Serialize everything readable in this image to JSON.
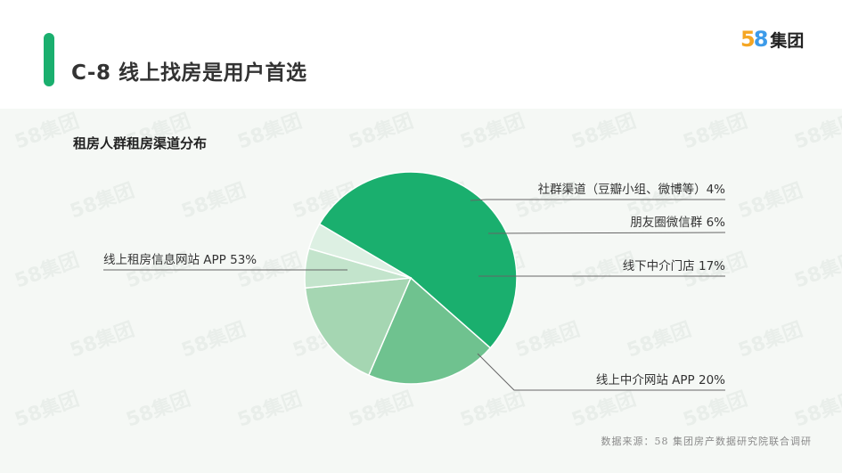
{
  "header": {
    "title": "C-8 线上找房是用户首选"
  },
  "logo": {
    "digit_a": "5",
    "digit_b": "8",
    "text": "集团",
    "watermark": "58集团"
  },
  "colors": {
    "accent": "#1aaf6e",
    "slices": [
      "#1aaf6e",
      "#6fc28f",
      "#a5d6b2",
      "#c3e4cc",
      "#ddf0e3"
    ]
  },
  "chart_data": {
    "type": "pie",
    "title": "租房人群租房渠道分布",
    "slices": [
      {
        "label": "线上租房信息网站 APP 53%",
        "value": 53
      },
      {
        "label": "线上中介网站 APP 20%",
        "value": 20
      },
      {
        "label": "线下中介门店 17%",
        "value": 17
      },
      {
        "label": "朋友圈微信群 6%",
        "value": 6
      },
      {
        "label": "社群渠道（豆瓣小组、微博等）4%",
        "value": 4
      }
    ]
  },
  "source": "数据来源：58 集团房产数据研究院联合调研"
}
